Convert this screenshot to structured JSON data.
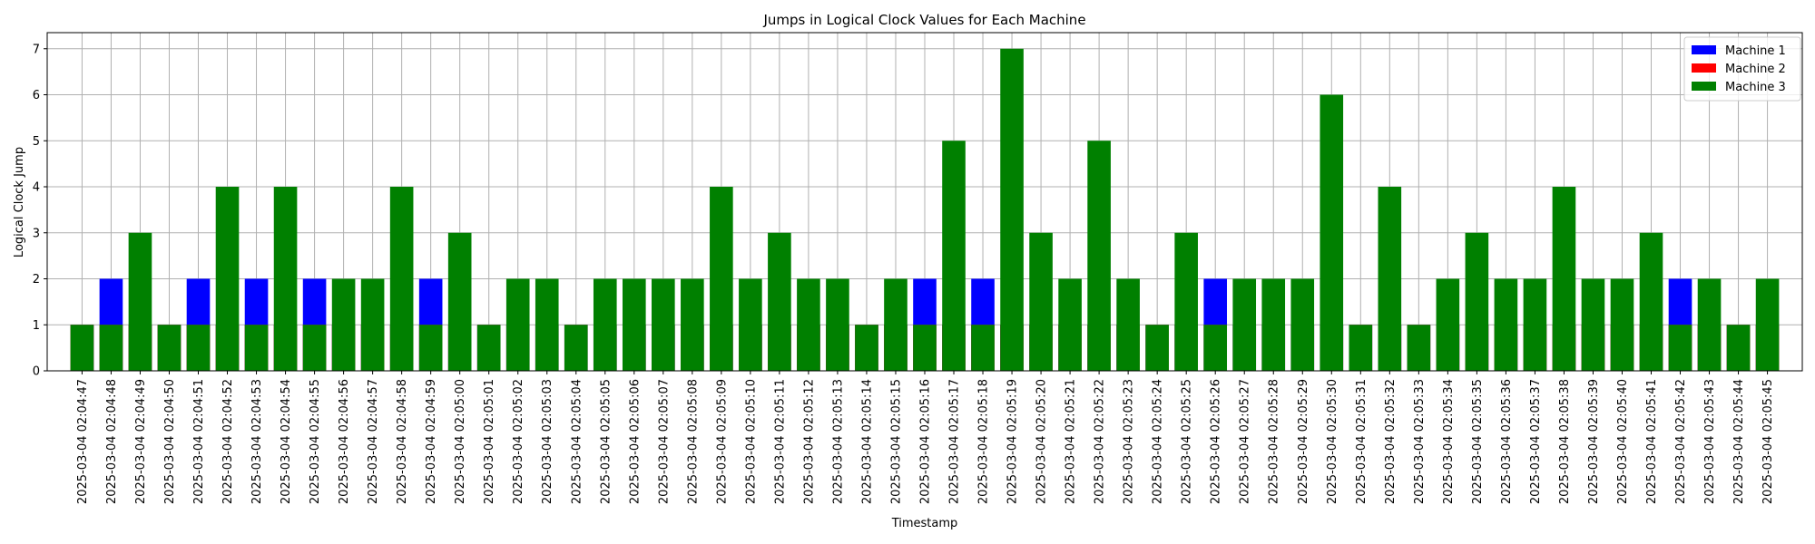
{
  "chart_data": {
    "type": "bar",
    "title": "Jumps in Logical Clock Values for Each Machine",
    "xlabel": "Timestamp",
    "ylabel": "Logical Clock Jump",
    "ylim": [
      0,
      7.35
    ],
    "yticks": [
      0,
      1,
      2,
      3,
      4,
      5,
      6,
      7
    ],
    "grid": true,
    "legend_position": "top-right",
    "categories": [
      "2025-03-04 02:04:47",
      "2025-03-04 02:04:48",
      "2025-03-04 02:04:49",
      "2025-03-04 02:04:50",
      "2025-03-04 02:04:51",
      "2025-03-04 02:04:52",
      "2025-03-04 02:04:53",
      "2025-03-04 02:04:54",
      "2025-03-04 02:04:55",
      "2025-03-04 02:04:56",
      "2025-03-04 02:04:57",
      "2025-03-04 02:04:58",
      "2025-03-04 02:04:59",
      "2025-03-04 02:05:00",
      "2025-03-04 02:05:01",
      "2025-03-04 02:05:02",
      "2025-03-04 02:05:03",
      "2025-03-04 02:05:04",
      "2025-03-04 02:05:05",
      "2025-03-04 02:05:06",
      "2025-03-04 02:05:07",
      "2025-03-04 02:05:08",
      "2025-03-04 02:05:09",
      "2025-03-04 02:05:10",
      "2025-03-04 02:05:11",
      "2025-03-04 02:05:12",
      "2025-03-04 02:05:13",
      "2025-03-04 02:05:14",
      "2025-03-04 02:05:15",
      "2025-03-04 02:05:16",
      "2025-03-04 02:05:17",
      "2025-03-04 02:05:18",
      "2025-03-04 02:05:19",
      "2025-03-04 02:05:20",
      "2025-03-04 02:05:21",
      "2025-03-04 02:05:22",
      "2025-03-04 02:05:23",
      "2025-03-04 02:05:24",
      "2025-03-04 02:05:25",
      "2025-03-04 02:05:26",
      "2025-03-04 02:05:27",
      "2025-03-04 02:05:28",
      "2025-03-04 02:05:29",
      "2025-03-04 02:05:30",
      "2025-03-04 02:05:31",
      "2025-03-04 02:05:32",
      "2025-03-04 02:05:33",
      "2025-03-04 02:05:34",
      "2025-03-04 02:05:35",
      "2025-03-04 02:05:36",
      "2025-03-04 02:05:37",
      "2025-03-04 02:05:38",
      "2025-03-04 02:05:39",
      "2025-03-04 02:05:40",
      "2025-03-04 02:05:41",
      "2025-03-04 02:05:42",
      "2025-03-04 02:05:43",
      "2025-03-04 02:05:44",
      "2025-03-04 02:05:45"
    ],
    "series": [
      {
        "name": "Machine 1",
        "color": "#0000ff",
        "values": [
          1,
          2,
          1,
          1,
          2,
          1,
          2,
          1,
          2,
          1,
          1,
          1,
          2,
          1,
          1,
          1,
          1,
          1,
          1,
          1,
          1,
          1,
          1,
          1,
          1,
          1,
          1,
          1,
          1,
          2,
          1,
          2,
          1,
          1,
          1,
          1,
          1,
          1,
          1,
          2,
          1,
          1,
          1,
          1,
          1,
          1,
          1,
          1,
          1,
          1,
          1,
          1,
          1,
          1,
          1,
          2,
          1,
          1,
          1
        ]
      },
      {
        "name": "Machine 2",
        "color": "#ff0000",
        "values": [
          1,
          1,
          1,
          1,
          1,
          1,
          1,
          1,
          1,
          1,
          1,
          1,
          1,
          1,
          1,
          1,
          1,
          1,
          1,
          1,
          1,
          1,
          1,
          1,
          1,
          1,
          1,
          1,
          1,
          1,
          1,
          1,
          1,
          1,
          1,
          1,
          1,
          1,
          1,
          1,
          1,
          1,
          1,
          1,
          1,
          1,
          1,
          1,
          1,
          1,
          1,
          1,
          1,
          1,
          1,
          1,
          1,
          1,
          1
        ]
      },
      {
        "name": "Machine 3",
        "color": "#008000",
        "values": [
          1,
          1,
          3,
          1,
          1,
          4,
          1,
          4,
          1,
          2,
          2,
          4,
          1,
          3,
          1,
          2,
          2,
          1,
          2,
          2,
          2,
          2,
          4,
          2,
          3,
          2,
          2,
          1,
          2,
          1,
          5,
          1,
          7,
          3,
          2,
          5,
          2,
          1,
          3,
          1,
          2,
          2,
          2,
          6,
          1,
          4,
          1,
          2,
          3,
          2,
          2,
          4,
          2,
          2,
          3,
          1,
          2,
          1,
          2
        ]
      }
    ]
  }
}
